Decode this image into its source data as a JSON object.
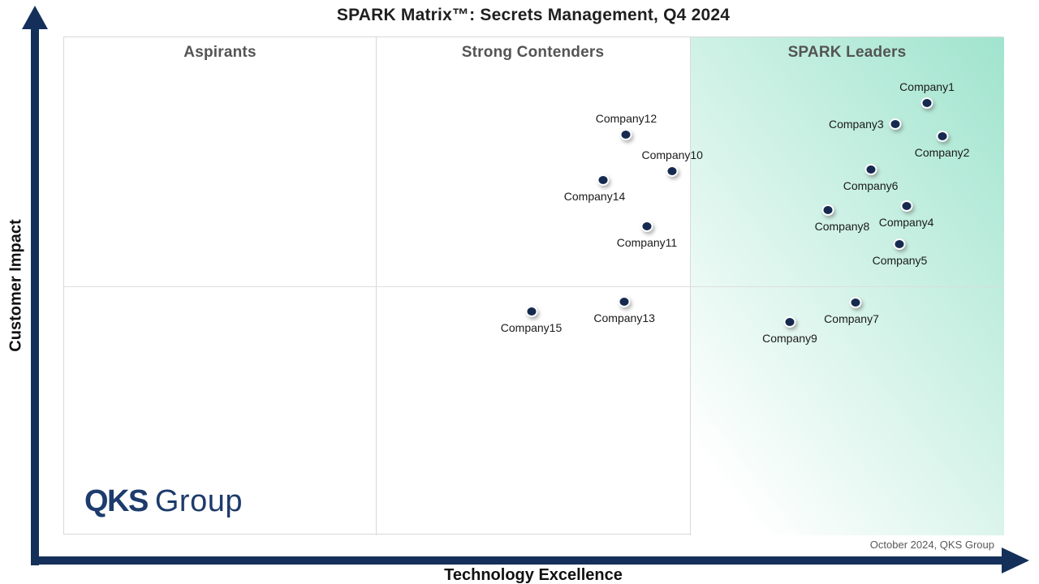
{
  "title": "SPARK Matrix™: Secrets Management, Q4 2024",
  "quadrants": [
    {
      "label": "Aspirants"
    },
    {
      "label": "Strong Contenders"
    },
    {
      "label": "SPARK Leaders"
    }
  ],
  "axes": {
    "x_label": "Technology Excellence",
    "y_label": "Customer Impact"
  },
  "footnote": "October 2024, QKS Group",
  "logo": {
    "bold_text": "QKS",
    "regular_text": "Group"
  },
  "colors": {
    "axis_navy": "#14305a",
    "dot_fill": "#152a4e",
    "leaders_gradient_end": "#a0e4ce",
    "grid_line": "#d9d9d9",
    "quadrant_label_gray": "#545454",
    "footnote_gray": "#595959",
    "logo_navy": "#1d3b6c"
  },
  "chart_data": {
    "type": "scatter",
    "title": "SPARK Matrix™: Secrets Management, Q4 2024",
    "xlabel": "Technology Excellence",
    "ylabel": "Customer Impact",
    "axis_ticks": "none (qualitative axes, positions given as % of plot area from bottom-left)",
    "grid": {
      "vertical_dividers_pct": [
        33.2,
        66.6
      ],
      "horizontal_divider_pct": [
        50.0
      ]
    },
    "legend": "none",
    "points": [
      {
        "name": "Company1",
        "x_pct": 91.8,
        "y_pct": 86.8,
        "label_pos": "top"
      },
      {
        "name": "Company2",
        "x_pct": 93.4,
        "y_pct": 80.1,
        "label_pos": "bottom"
      },
      {
        "name": "Company3",
        "x_pct": 88.4,
        "y_pct": 82.6,
        "label_pos": "left"
      },
      {
        "name": "Company4",
        "x_pct": 89.6,
        "y_pct": 66.1,
        "label_pos": "bottom"
      },
      {
        "name": "Company5",
        "x_pct": 88.9,
        "y_pct": 58.5,
        "label_pos": "bottom"
      },
      {
        "name": "Company6",
        "x_pct": 85.8,
        "y_pct": 73.5,
        "label_pos": "bottom"
      },
      {
        "name": "Company7",
        "x_pct": 84.2,
        "y_pct": 46.7,
        "label_pos": "bottom",
        "label_dx": -5
      },
      {
        "name": "Company8",
        "x_pct": 81.3,
        "y_pct": 65.3,
        "label_pos": "bottom",
        "label_dx": 17
      },
      {
        "name": "Company9",
        "x_pct": 77.2,
        "y_pct": 42.8,
        "label_pos": "bottom"
      },
      {
        "name": "Company10",
        "x_pct": 64.7,
        "y_pct": 73.1,
        "label_pos": "top"
      },
      {
        "name": "Company11",
        "x_pct": 62.0,
        "y_pct": 62.1,
        "label_pos": "bottom"
      },
      {
        "name": "Company12",
        "x_pct": 59.8,
        "y_pct": 80.5,
        "label_pos": "top"
      },
      {
        "name": "Company13",
        "x_pct": 59.6,
        "y_pct": 46.9,
        "label_pos": "bottom"
      },
      {
        "name": "Company14",
        "x_pct": 57.3,
        "y_pct": 71.3,
        "label_pos": "bottom",
        "label_dx": -10
      },
      {
        "name": "Company15",
        "x_pct": 49.7,
        "y_pct": 44.9,
        "label_pos": "bottom"
      }
    ]
  }
}
